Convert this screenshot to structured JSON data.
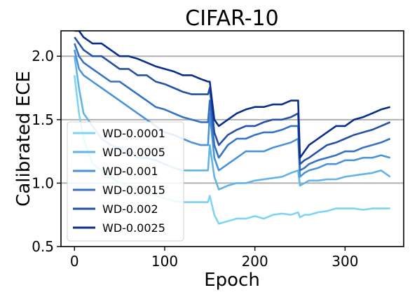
{
  "chart_data": {
    "type": "line",
    "title": "CIFAR-10",
    "xlabel": "Epoch",
    "ylabel": "Calibrated ECE",
    "xlim": [
      -15,
      365
    ],
    "ylim": [
      0.5,
      2.2
    ],
    "xticks": [
      0,
      100,
      200,
      300
    ],
    "yticks": [
      0.5,
      1.0,
      1.5,
      2.0
    ],
    "xtick_labels": [
      "0",
      "100",
      "200",
      "300"
    ],
    "ytick_labels": [
      "0.5",
      "1.0",
      "1.5",
      "2.0"
    ],
    "grid": "horizontal at y ticks",
    "legend_position": "lower-left",
    "x": [
      0,
      5,
      10,
      20,
      30,
      40,
      50,
      60,
      70,
      80,
      90,
      100,
      110,
      120,
      130,
      140,
      148,
      150,
      155,
      160,
      170,
      180,
      190,
      200,
      210,
      220,
      230,
      240,
      248,
      250,
      255,
      260,
      270,
      280,
      290,
      300,
      310,
      320,
      330,
      340,
      350
    ],
    "series": [
      {
        "name": "WD-0.0001",
        "color": "#7fd4f0",
        "values": [
          1.85,
          1.55,
          1.35,
          1.15,
          1.1,
          1.05,
          1.0,
          0.98,
          0.95,
          0.92,
          0.9,
          0.88,
          0.86,
          0.85,
          0.85,
          0.85,
          0.85,
          0.9,
          0.75,
          0.68,
          0.7,
          0.72,
          0.72,
          0.74,
          0.72,
          0.75,
          0.76,
          0.75,
          0.77,
          0.73,
          0.75,
          0.75,
          0.77,
          0.78,
          0.8,
          0.8,
          0.8,
          0.79,
          0.8,
          0.8,
          0.8
        ]
      },
      {
        "name": "WD-0.0005",
        "color": "#62b3e8",
        "values": [
          2.0,
          1.75,
          1.55,
          1.45,
          1.35,
          1.3,
          1.28,
          1.25,
          1.2,
          1.2,
          1.18,
          1.15,
          1.12,
          1.1,
          1.1,
          1.1,
          1.1,
          1.3,
          1.05,
          0.95,
          0.98,
          1.0,
          1.0,
          1.02,
          1.03,
          1.04,
          1.05,
          1.08,
          1.1,
          0.98,
          1.0,
          1.02,
          1.02,
          1.03,
          1.03,
          1.05,
          1.06,
          1.07,
          1.08,
          1.1,
          1.05
        ]
      },
      {
        "name": "WD-0.001",
        "color": "#4b93d6",
        "values": [
          2.05,
          1.9,
          1.85,
          1.8,
          1.75,
          1.7,
          1.65,
          1.6,
          1.55,
          1.5,
          1.45,
          1.4,
          1.38,
          1.35,
          1.32,
          1.3,
          1.3,
          1.55,
          1.2,
          1.1,
          1.15,
          1.2,
          1.25,
          1.25,
          1.25,
          1.28,
          1.3,
          1.32,
          1.35,
          1.05,
          1.08,
          1.1,
          1.12,
          1.15,
          1.15,
          1.18,
          1.18,
          1.2,
          1.2,
          1.22,
          1.2
        ]
      },
      {
        "name": "WD-0.0015",
        "color": "#3571c4",
        "values": [
          2.1,
          2.0,
          1.95,
          1.9,
          1.85,
          1.8,
          1.8,
          1.75,
          1.7,
          1.65,
          1.6,
          1.58,
          1.55,
          1.52,
          1.5,
          1.48,
          1.48,
          1.65,
          1.3,
          1.2,
          1.3,
          1.35,
          1.35,
          1.38,
          1.4,
          1.4,
          1.42,
          1.45,
          1.45,
          1.1,
          1.12,
          1.15,
          1.18,
          1.2,
          1.22,
          1.25,
          1.25,
          1.28,
          1.3,
          1.32,
          1.35
        ]
      },
      {
        "name": "WD-0.002",
        "color": "#2450a8",
        "values": [
          2.15,
          2.1,
          2.05,
          2.0,
          2.0,
          1.95,
          1.9,
          1.9,
          1.85,
          1.85,
          1.8,
          1.78,
          1.75,
          1.72,
          1.7,
          1.7,
          1.7,
          1.75,
          1.4,
          1.3,
          1.38,
          1.42,
          1.45,
          1.45,
          1.48,
          1.5,
          1.5,
          1.52,
          1.55,
          1.15,
          1.18,
          1.2,
          1.25,
          1.3,
          1.32,
          1.35,
          1.38,
          1.4,
          1.42,
          1.45,
          1.48
        ]
      },
      {
        "name": "WD-0.0025",
        "color": "#0a2d8c",
        "values": [
          2.2,
          2.2,
          2.15,
          2.1,
          2.1,
          2.05,
          2.0,
          2.0,
          1.98,
          1.95,
          1.92,
          1.9,
          1.88,
          1.85,
          1.85,
          1.82,
          1.8,
          1.8,
          1.5,
          1.45,
          1.5,
          1.55,
          1.58,
          1.6,
          1.6,
          1.62,
          1.62,
          1.65,
          1.65,
          1.2,
          1.25,
          1.3,
          1.35,
          1.4,
          1.45,
          1.45,
          1.5,
          1.52,
          1.55,
          1.58,
          1.6
        ]
      }
    ]
  }
}
